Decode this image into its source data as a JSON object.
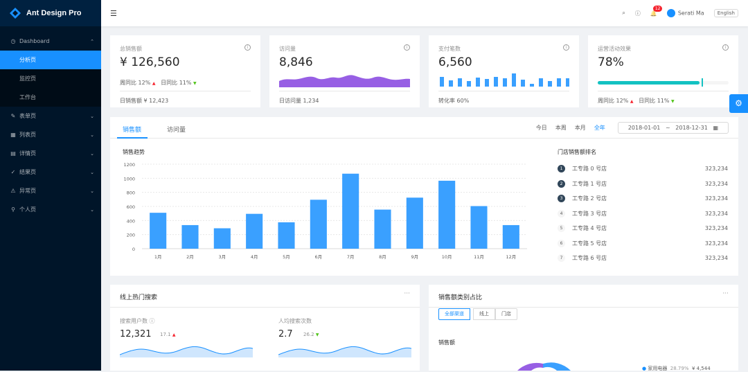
{
  "app": {
    "title": "Ant Design Pro"
  },
  "sidebar": {
    "dashboard": "Dashboard",
    "dash_items": [
      {
        "label": "分析页"
      },
      {
        "label": "监控页"
      },
      {
        "label": "工作台"
      }
    ],
    "items": [
      {
        "label": "表单页"
      },
      {
        "label": "列表页"
      },
      {
        "label": "详情页"
      },
      {
        "label": "结果页"
      },
      {
        "label": "异常页"
      },
      {
        "label": "个人页"
      }
    ]
  },
  "header": {
    "notif_count": "12",
    "user": "Serati Ma",
    "lang": "English"
  },
  "kpis": [
    {
      "title": "总销售额",
      "value": "¥ 126,560",
      "wk_label": "周同比",
      "wk": "12%",
      "day_label": "日同比",
      "day": "11%",
      "foot_label": "日销售额",
      "foot_val": "¥ 12,423"
    },
    {
      "title": "访问量",
      "value": "8,846",
      "foot_label": "日访问量",
      "foot_val": "1,234"
    },
    {
      "title": "支付笔数",
      "value": "6,560",
      "foot_label": "转化率",
      "foot_val": "60%"
    },
    {
      "title": "运营活动效果",
      "value": "78%",
      "progress": 0.78,
      "wk_label": "周同比",
      "wk": "12%",
      "day_label": "日同比",
      "day": "11%"
    }
  ],
  "sales": {
    "tabs": [
      "销售额",
      "访问量"
    ],
    "periods": [
      "今日",
      "本周",
      "本月",
      "全年"
    ],
    "start": "2018-01-01",
    "sep": "~",
    "end": "2018-12-31",
    "chart_title": "销售趋势",
    "rank_title": "门店销售额排名",
    "ranking": [
      {
        "no": "1",
        "name": "工专路 0 号店",
        "val": "323,234"
      },
      {
        "no": "2",
        "name": "工专路 1 号店",
        "val": "323,234"
      },
      {
        "no": "3",
        "name": "工专路 2 号店",
        "val": "323,234"
      },
      {
        "no": "4",
        "name": "工专路 3 号店",
        "val": "323,234"
      },
      {
        "no": "5",
        "name": "工专路 4 号店",
        "val": "323,234"
      },
      {
        "no": "6",
        "name": "工专路 5 号店",
        "val": "323,234"
      },
      {
        "no": "7",
        "name": "工专路 6 号店",
        "val": "323,234"
      }
    ]
  },
  "chart_data": {
    "type": "bar",
    "title": "销售趋势",
    "categories": [
      "1月",
      "2月",
      "3月",
      "4月",
      "5月",
      "6月",
      "7月",
      "8月",
      "9月",
      "10月",
      "11月",
      "12月"
    ],
    "values": [
      510,
      335,
      290,
      495,
      375,
      695,
      1065,
      555,
      725,
      965,
      605,
      335
    ],
    "ylim": [
      0,
      1200
    ],
    "yticks": [
      0,
      200,
      400,
      600,
      800,
      1000,
      1200
    ],
    "color": "#3aa0ff"
  },
  "search": {
    "title": "线上热门搜索",
    "users_label": "搜索用户数",
    "users": "12,321",
    "users_pct": "17.1",
    "per_label": "人均搜索次数",
    "per": "2.7",
    "per_pct": "26.2"
  },
  "category": {
    "title": "销售额类别占比",
    "filters": [
      "全部渠道",
      "线上",
      "门店"
    ],
    "sub": "销售额",
    "legend": "家用电器",
    "legend_pct": "28.79%",
    "legend_val": "¥ 4,544"
  },
  "more": "···",
  "colors": {
    "primary": "#1890ff",
    "sider": "#001529",
    "area": "#975fe4",
    "progress": "#13c2c2"
  }
}
